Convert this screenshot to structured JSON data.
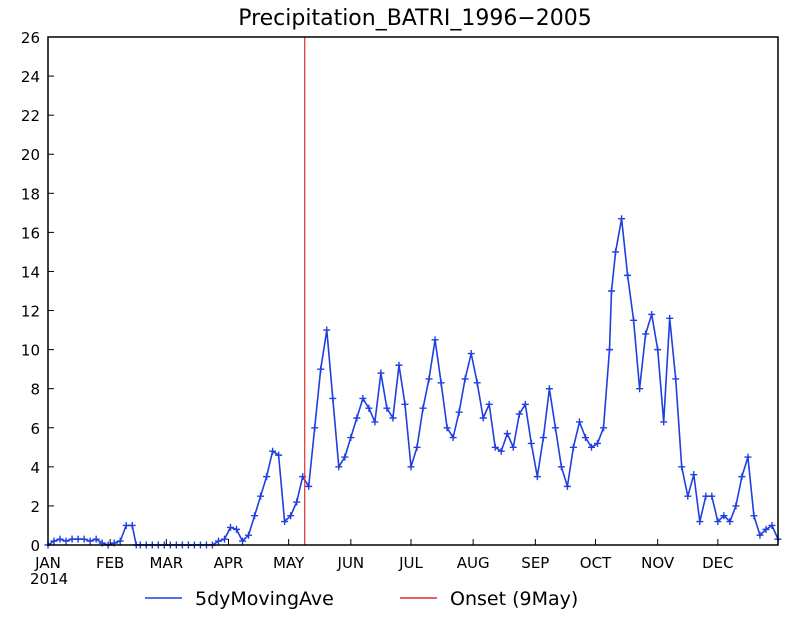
{
  "chart_data": {
    "type": "line",
    "title": "Precipitation_BATRI_1996−2005",
    "xlabel": "",
    "ylabel": "",
    "ylim": [
      0,
      26
    ],
    "yticks": [
      0,
      2,
      4,
      6,
      8,
      10,
      12,
      14,
      16,
      18,
      20,
      22,
      24,
      26
    ],
    "xlim": [
      1,
      365
    ],
    "year_label": "2014",
    "months": [
      {
        "label": "JAN",
        "day": 1
      },
      {
        "label": "FEB",
        "day": 32
      },
      {
        "label": "MAR",
        "day": 60
      },
      {
        "label": "APR",
        "day": 91
      },
      {
        "label": "MAY",
        "day": 121
      },
      {
        "label": "JUN",
        "day": 152
      },
      {
        "label": "JUL",
        "day": 182
      },
      {
        "label": "AUG",
        "day": 213
      },
      {
        "label": "SEP",
        "day": 244
      },
      {
        "label": "OCT",
        "day": 274
      },
      {
        "label": "NOV",
        "day": 305
      },
      {
        "label": "DEC",
        "day": 335
      }
    ],
    "grid": false,
    "legend_position": "bottom",
    "colors": {
      "series": "#1f3fe0",
      "onset": "#e03030"
    },
    "series": [
      {
        "name": "5dyMovingAve",
        "x": [
          1,
          4,
          7,
          10,
          13,
          16,
          19,
          22,
          25,
          28,
          31,
          34,
          37,
          40,
          43,
          45,
          47,
          50,
          53,
          56,
          59,
          62,
          65,
          68,
          71,
          74,
          77,
          80,
          83,
          86,
          89,
          92,
          95,
          98,
          101,
          104,
          107,
          110,
          113,
          116,
          119,
          122,
          125,
          128,
          131,
          134,
          137,
          140,
          143,
          146,
          149,
          152,
          155,
          158,
          161,
          164,
          167,
          170,
          173,
          176,
          179,
          182,
          185,
          188,
          191,
          194,
          197,
          200,
          203,
          206,
          209,
          212,
          215,
          218,
          221,
          224,
          227,
          230,
          233,
          236,
          239,
          242,
          245,
          248,
          251,
          254,
          257,
          260,
          263,
          266,
          269,
          272,
          275,
          278,
          281,
          282,
          284,
          287,
          290,
          293,
          296,
          299,
          302,
          305,
          308,
          311,
          314,
          317,
          320,
          323,
          326,
          329,
          332,
          335,
          338,
          341,
          344,
          347,
          350,
          353,
          356,
          359,
          362,
          365
        ],
        "values": [
          0,
          0.2,
          0.3,
          0.2,
          0.3,
          0.3,
          0.3,
          0.2,
          0.3,
          0.1,
          0,
          0.1,
          0.2,
          1.0,
          1.0,
          0,
          0,
          0,
          0,
          0,
          0,
          0,
          0,
          0,
          0,
          0,
          0,
          0,
          0,
          0.2,
          0.3,
          0.9,
          0.8,
          0.2,
          0.5,
          1.5,
          2.5,
          3.5,
          4.8,
          4.6,
          1.2,
          1.5,
          2.2,
          3.5,
          3.0,
          6.0,
          9.0,
          11.0,
          7.5,
          4.0,
          4.5,
          5.5,
          6.5,
          7.5,
          7.0,
          6.3,
          8.8,
          7.0,
          6.5,
          9.2,
          7.2,
          4.0,
          5.0,
          7.0,
          8.5,
          10.5,
          8.3,
          6.0,
          5.5,
          6.8,
          8.5,
          9.8,
          8.3,
          6.5,
          7.2,
          5.0,
          4.8,
          5.7,
          5.0,
          6.7,
          7.2,
          5.2,
          3.5,
          5.5,
          8.0,
          6.0,
          4.0,
          3.0,
          5.0,
          6.3,
          5.5,
          5.0,
          5.2,
          6.0,
          10.0,
          13.0,
          15.0,
          16.7,
          13.8,
          11.5,
          8.0,
          10.8,
          11.8,
          10.0,
          6.3,
          11.6,
          8.5,
          4.0,
          2.5,
          3.6,
          1.2,
          2.5,
          2.5,
          1.2,
          1.5,
          1.2,
          2.0,
          3.5,
          4.5,
          1.5,
          0.5,
          0.8,
          1.0,
          0.3
        ]
      }
    ],
    "onset": {
      "name": "Onset (9May)",
      "day": 129
    }
  }
}
